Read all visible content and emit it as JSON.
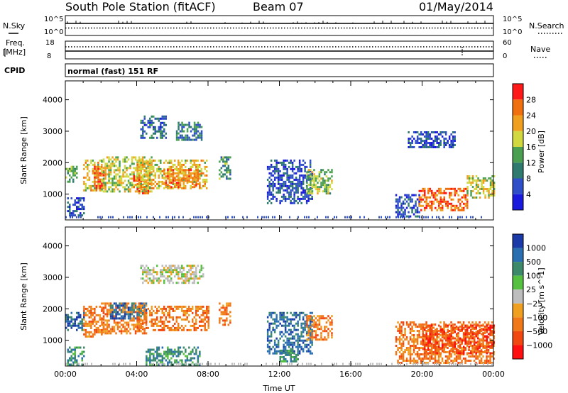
{
  "header": {
    "station": "South Pole Station (fitACF)",
    "beam": "Beam 07",
    "date": "01/May/2014"
  },
  "status_panels": {
    "nsky": {
      "label": "N.Sky",
      "ticks": [
        "10^5",
        "10^0"
      ]
    },
    "nsearch": {
      "label": "N.Search",
      "ticks": [
        "10^5",
        "10^0"
      ]
    },
    "freq": {
      "label_top": "Freq.",
      "label_bottom": "[MHz]",
      "ticks": [
        "18",
        "8"
      ]
    },
    "nave": {
      "label": "Nave",
      "ticks": [
        "60",
        "0"
      ]
    },
    "cpid": {
      "label": "CPID",
      "value": "normal (fast) 151 RF"
    }
  },
  "colors": {
    "power_scale": [
      "#1a1adc",
      "#2f4fc8",
      "#2e7a6e",
      "#4aa050",
      "#d2d840",
      "#f0a020",
      "#f07010",
      "#ff1a1a"
    ],
    "velocity_scale": [
      "#1a3aa8",
      "#2a70b0",
      "#3c8a6a",
      "#56c040",
      "#bdbdbd",
      "#f0a020",
      "#f07818",
      "#f04810",
      "#ff1010"
    ]
  },
  "chart_data": [
    {
      "type": "heatmap",
      "name": "power",
      "ylabel": "Slant Range [km]",
      "xlabel": "",
      "ylim": [
        180,
        4600
      ],
      "xlim_hours": [
        0,
        24
      ],
      "y_ticks": [
        "1000",
        "2000",
        "3000",
        "4000"
      ],
      "y_tick_values": [
        1000,
        2000,
        3000,
        4000
      ],
      "colorbar": {
        "label": "Power [dB]",
        "range": [
          0,
          32
        ],
        "tick_labels": [
          "4",
          "8",
          "12",
          "16",
          "20",
          "24",
          "28"
        ]
      },
      "echo_regions": [
        {
          "t0": 0.0,
          "t1": 0.6,
          "r0": 1400,
          "r1": 1900,
          "level": 14
        },
        {
          "t0": 0.1,
          "t1": 1.0,
          "r0": 300,
          "r1": 900,
          "level": 6
        },
        {
          "t0": 1.0,
          "t1": 2.0,
          "r0": 1100,
          "r1": 2100,
          "level": 20
        },
        {
          "t0": 1.6,
          "t1": 2.2,
          "r0": 1200,
          "r1": 1900,
          "level": 26
        },
        {
          "t0": 2.0,
          "t1": 4.8,
          "r0": 1100,
          "r1": 2200,
          "level": 18
        },
        {
          "t0": 3.8,
          "t1": 4.6,
          "r0": 1000,
          "r1": 1600,
          "level": 26
        },
        {
          "t0": 4.0,
          "t1": 7.9,
          "r0": 1200,
          "r1": 2100,
          "level": 20
        },
        {
          "t0": 5.5,
          "t1": 7.5,
          "r0": 1200,
          "r1": 1800,
          "level": 24
        },
        {
          "t0": 4.2,
          "t1": 5.6,
          "r0": 2800,
          "r1": 3500,
          "level": 8
        },
        {
          "t0": 6.2,
          "t1": 7.6,
          "r0": 2700,
          "r1": 3300,
          "level": 10
        },
        {
          "t0": 8.6,
          "t1": 9.2,
          "r0": 1500,
          "r1": 2200,
          "level": 12
        },
        {
          "t0": 11.3,
          "t1": 13.8,
          "r0": 700,
          "r1": 2100,
          "level": 6
        },
        {
          "t0": 13.5,
          "t1": 14.9,
          "r0": 1000,
          "r1": 1800,
          "level": 16
        },
        {
          "t0": 18.5,
          "t1": 19.8,
          "r0": 300,
          "r1": 1000,
          "level": 6
        },
        {
          "t0": 19.8,
          "t1": 22.5,
          "r0": 500,
          "r1": 1200,
          "level": 26
        },
        {
          "t0": 22.5,
          "t1": 24.0,
          "r0": 900,
          "r1": 1600,
          "level": 18
        },
        {
          "t0": 19.2,
          "t1": 21.8,
          "r0": 2500,
          "r1": 3000,
          "level": 6
        }
      ]
    },
    {
      "type": "heatmap",
      "name": "velocity",
      "ylabel": "Slant Range [km]",
      "xlabel": "Time UT",
      "ylim": [
        180,
        4600
      ],
      "xlim_hours": [
        0,
        24
      ],
      "x_tick_labels": [
        "00:00",
        "04:00",
        "08:00",
        "12:00",
        "16:00",
        "20:00",
        "00:00"
      ],
      "y_ticks": [
        "1000",
        "2000",
        "3000",
        "4000"
      ],
      "y_tick_values": [
        1000,
        2000,
        3000,
        4000
      ],
      "colorbar": {
        "label": "Velocity [m s^-1]",
        "tick_labels": [
          "1000",
          "500",
          "100",
          "25",
          "−25",
          "−100",
          "−500",
          "−1000"
        ]
      },
      "echo_regions": [
        {
          "t0": 0.0,
          "t1": 1.0,
          "r0": 1300,
          "r1": 1900,
          "bin": 1
        },
        {
          "t0": 0.1,
          "t1": 1.0,
          "r0": 250,
          "r1": 800,
          "bin": 2
        },
        {
          "t0": 1.0,
          "t1": 2.1,
          "r0": 1100,
          "r1": 2100,
          "bin": 6
        },
        {
          "t0": 2.0,
          "t1": 4.5,
          "r0": 1200,
          "r1": 2200,
          "bin": 6
        },
        {
          "t0": 2.5,
          "t1": 4.5,
          "r0": 1700,
          "r1": 2200,
          "bin": 1
        },
        {
          "t0": 4.0,
          "t1": 8.0,
          "r0": 1300,
          "r1": 2100,
          "bin": 6
        },
        {
          "t0": 4.2,
          "t1": 7.7,
          "r0": 2800,
          "r1": 3400,
          "bin": 4
        },
        {
          "t0": 4.5,
          "t1": 7.5,
          "r0": 200,
          "r1": 800,
          "bin": 2
        },
        {
          "t0": 8.6,
          "t1": 9.2,
          "r0": 1500,
          "r1": 2200,
          "bin": 6
        },
        {
          "t0": 11.3,
          "t1": 13.8,
          "r0": 600,
          "r1": 1900,
          "bin": 1
        },
        {
          "t0": 12.0,
          "t1": 13.0,
          "r0": 300,
          "r1": 700,
          "bin": 2
        },
        {
          "t0": 13.5,
          "t1": 14.9,
          "r0": 1000,
          "r1": 1800,
          "bin": 6
        },
        {
          "t0": 18.5,
          "t1": 24.0,
          "r0": 300,
          "r1": 1600,
          "bin": 6
        },
        {
          "t0": 20.0,
          "t1": 24.0,
          "r0": 600,
          "r1": 1500,
          "bin": 7
        }
      ]
    }
  ]
}
